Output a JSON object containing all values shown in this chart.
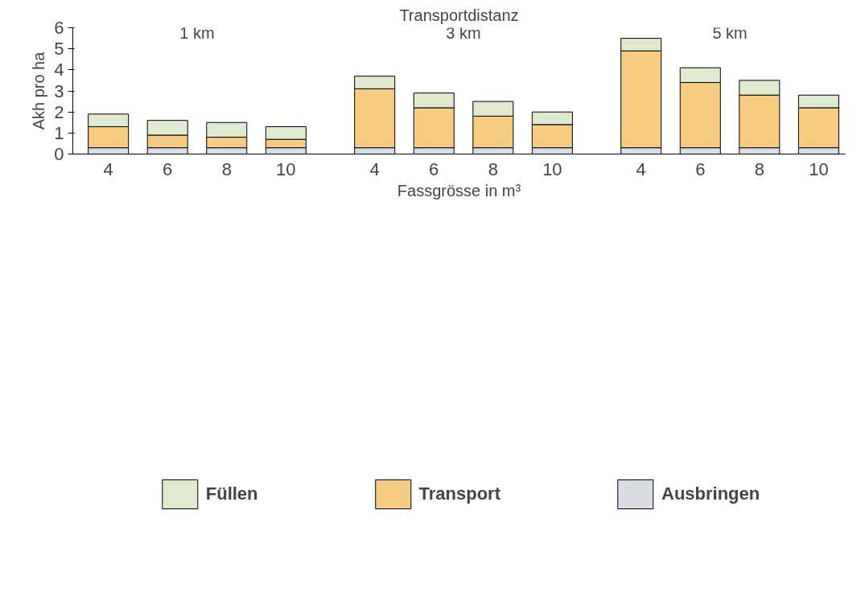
{
  "chart_data": {
    "type": "bar",
    "stacked": true,
    "title": "Transportdistanz",
    "xlabel": "Fassgrösse in m³",
    "ylabel": "Akh pro ha",
    "categories": [
      "4",
      "6",
      "8",
      "10",
      "4",
      "6",
      "8",
      "10",
      "4",
      "6",
      "8",
      "10"
    ],
    "series": [
      {
        "name": "Ausbringen",
        "color": "#d9dce2",
        "values": [
          0.3,
          0.3,
          0.3,
          0.3,
          0.3,
          0.3,
          0.3,
          0.3,
          0.3,
          0.3,
          0.3,
          0.3
        ]
      },
      {
        "name": "Transport",
        "color": "#f6cb82",
        "values": [
          1.0,
          0.6,
          0.5,
          0.4,
          2.8,
          1.9,
          1.5,
          1.1,
          4.6,
          3.1,
          2.5,
          1.9
        ]
      },
      {
        "name": "Füllen",
        "color": "#dfe9cf",
        "values": [
          0.6,
          0.7,
          0.7,
          0.6,
          0.6,
          0.7,
          0.7,
          0.6,
          0.6,
          0.7,
          0.7,
          0.6
        ]
      }
    ],
    "annotations": [
      "1 km",
      "3 km",
      "5 km"
    ],
    "ylim": [
      0,
      6
    ],
    "yticks": [
      0,
      1,
      2,
      3,
      4,
      5,
      6
    ],
    "grid": false,
    "legend": "bottom"
  }
}
